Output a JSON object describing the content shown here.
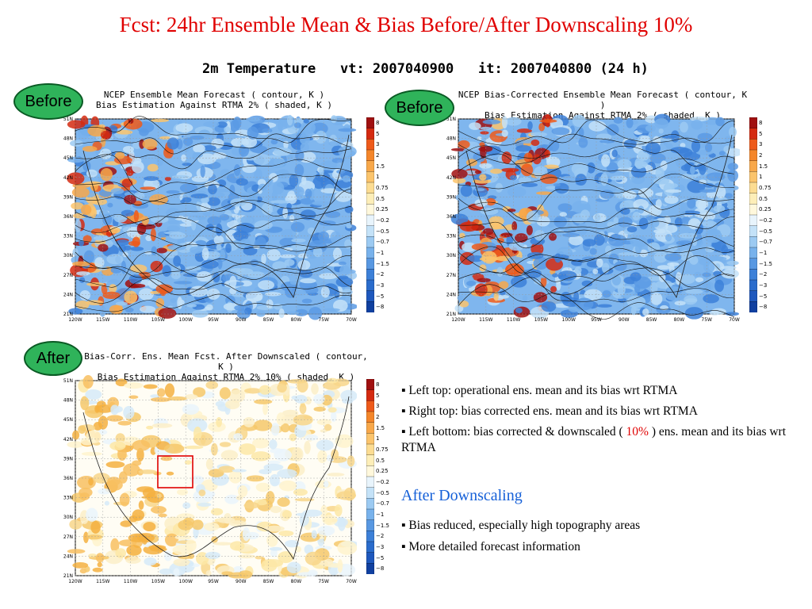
{
  "title": "Fcst: 24hr Ensemble Mean  & Bias Before/After Downscaling 10%",
  "subtitle": "2m Temperature   vt: 2007040900   it: 2007040800 (24 h)",
  "panels": {
    "left_top": {
      "label": "Before",
      "head_line1": "NCEP Ensemble Mean Forecast ( contour, K )",
      "head_line2": "Bias Estimation Against RTMA 2% ( shaded, K )"
    },
    "right_top": {
      "label": "Before",
      "head_line1": "NCEP Bias-Corrected Ensemble Mean Forecast ( contour, K )",
      "head_line2": "Bias Estimation Against RTMA 2% ( shaded, K )"
    },
    "left_bottom": {
      "label": "After",
      "head_line1": "Bias-Corr. Ens. Mean Fcst. After Downscaled ( contour, K )",
      "head_line2": "Bias Estimation Against RTMA 2%_10% ( shaded, K )"
    }
  },
  "map_axes": {
    "lat_labels": [
      "51N",
      "48N",
      "45N",
      "42N",
      "39N",
      "36N",
      "33N",
      "30N",
      "27N",
      "24N",
      "21N"
    ],
    "lon_labels": [
      "120W",
      "115W",
      "110W",
      "105W",
      "100W",
      "95W",
      "90W",
      "85W",
      "80W",
      "75W",
      "70W"
    ]
  },
  "colorbar": {
    "labels": [
      "8",
      "5",
      "3",
      "2",
      "1.5",
      "1",
      "0.75",
      "0.5",
      "0.25",
      "−0.2",
      "−0.5",
      "−0.7",
      "−1",
      "−1.5",
      "−2",
      "−3",
      "−5",
      "−8"
    ],
    "colors": [
      "#a01010",
      "#d42a10",
      "#ee5a1a",
      "#f4862a",
      "#f8a84a",
      "#fbc46c",
      "#fcdc92",
      "#fdeeb8",
      "#fff8dc",
      "#e8f4fc",
      "#c4e2f8",
      "#9ccaf2",
      "#78b2ec",
      "#5898e2",
      "#3c80d8",
      "#2a6ccc",
      "#1e58bd",
      "#1040a0"
    ]
  },
  "bullets": [
    "Left top: operational ens. mean and its bias wrt RTMA",
    "Right top: bias corrected ens. mean and its bias wrt RTMA"
  ],
  "bullet3": {
    "pre": "Left bottom: bias corrected & downscaled ( ",
    "highlight": "10%",
    "post": " ) ens. mean and its bias wrt RTMA"
  },
  "after_heading": "After Downscaling",
  "bullets_after": [
    "Bias reduced, especially high topography areas",
    "More detailed forecast information"
  ]
}
